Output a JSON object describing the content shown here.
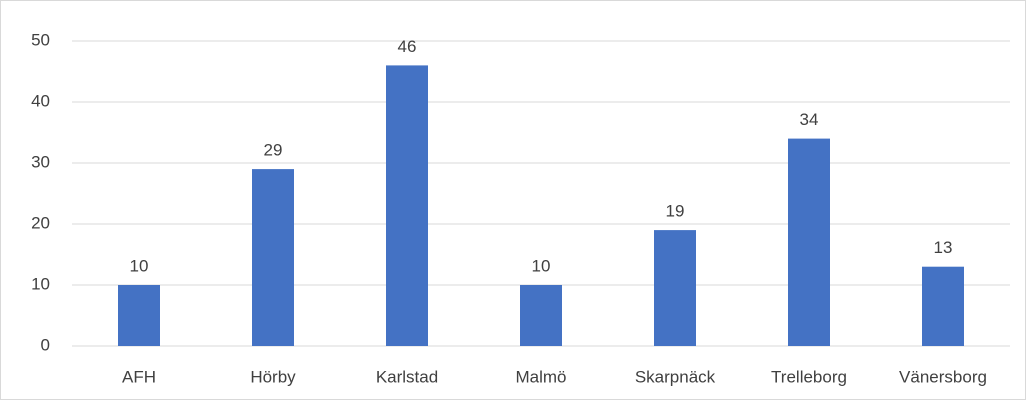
{
  "chart_data": {
    "type": "bar",
    "categories": [
      "AFH",
      "Hörby",
      "Karlstad",
      "Malmö",
      "Skarpnäck",
      "Trelleborg",
      "Vänersborg"
    ],
    "values": [
      10,
      29,
      46,
      10,
      19,
      34,
      13
    ],
    "color": "#4472c4",
    "ylim": [
      0,
      50
    ],
    "yticks": [
      0,
      10,
      20,
      30,
      40,
      50
    ],
    "grid": true
  }
}
